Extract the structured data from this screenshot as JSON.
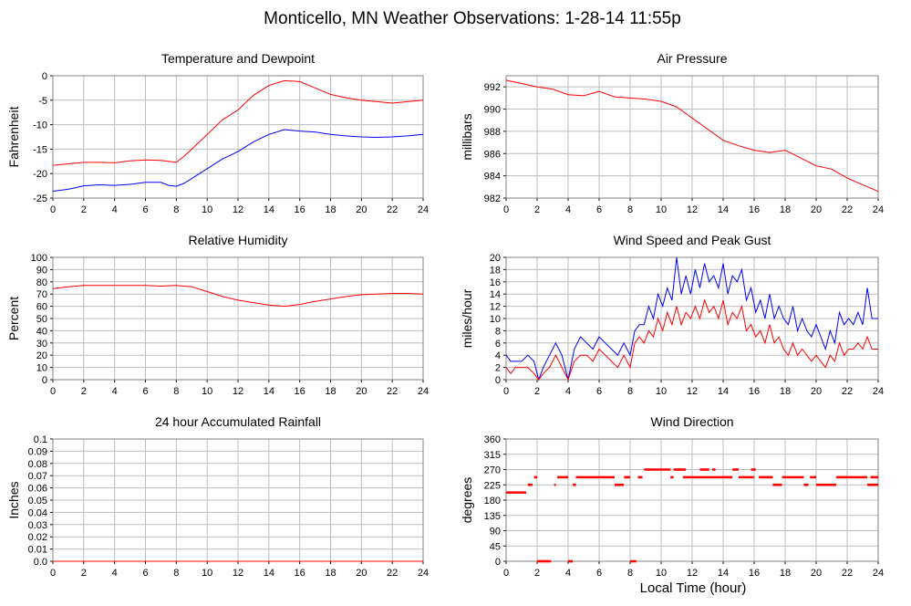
{
  "page_title": "Monticello, MN Weather Observations: 1-28-14 11:55p",
  "footer_xlabel": "Local Time (hour)",
  "chart_data": [
    {
      "id": "temp",
      "type": "line",
      "title": "Temperature and Dewpoint",
      "xlabel": "",
      "ylabel": "Fahrenheit",
      "xlim": [
        0,
        24
      ],
      "ylim": [
        -25,
        0
      ],
      "xticks": [
        0,
        2,
        4,
        6,
        8,
        10,
        12,
        14,
        16,
        18,
        20,
        22,
        24
      ],
      "yticks": [
        -25,
        -20,
        -15,
        -10,
        -5,
        0
      ],
      "ytick_labels": [
        "-25",
        "-20",
        "-15",
        "-10",
        "-5",
        "0"
      ],
      "grid": true,
      "series": [
        {
          "color": "#ff0000",
          "x": [
            0,
            1,
            2,
            3,
            4,
            5,
            6,
            7,
            8,
            8.5,
            9,
            10,
            11,
            12,
            13,
            14,
            15,
            16,
            17,
            18,
            19,
            20,
            21,
            22,
            23,
            24
          ],
          "y": [
            -18.3,
            -18,
            -17.7,
            -17.7,
            -17.8,
            -17.4,
            -17.2,
            -17.3,
            -17.7,
            -16.5,
            -15,
            -12,
            -9,
            -7,
            -4,
            -2,
            -1,
            -1.2,
            -2.5,
            -3.8,
            -4.5,
            -5,
            -5.3,
            -5.6,
            -5.3,
            -5
          ]
        },
        {
          "color": "#0000ff",
          "x": [
            0,
            1,
            2,
            3,
            4,
            5,
            6,
            7,
            7.5,
            8,
            8.5,
            9,
            10,
            11,
            12,
            13,
            14,
            15,
            16,
            17,
            18,
            19,
            20,
            21,
            22,
            23,
            24
          ],
          "y": [
            -23.6,
            -23.2,
            -22.5,
            -22.3,
            -22.4,
            -22.2,
            -21.8,
            -21.8,
            -22.4,
            -22.6,
            -22,
            -21,
            -19,
            -17,
            -15.5,
            -13.5,
            -12,
            -11,
            -11.3,
            -11.5,
            -12,
            -12.3,
            -12.5,
            -12.6,
            -12.5,
            -12.3,
            -12
          ]
        }
      ]
    },
    {
      "id": "pressure",
      "type": "line",
      "title": "Air Pressure",
      "xlabel": "",
      "ylabel": "millibars",
      "xlim": [
        0,
        24
      ],
      "ylim": [
        982,
        993
      ],
      "xticks": [
        0,
        2,
        4,
        6,
        8,
        10,
        12,
        14,
        16,
        18,
        20,
        22,
        24
      ],
      "yticks": [
        982,
        984,
        986,
        988,
        990,
        992
      ],
      "ytick_labels": [
        "982",
        "984",
        "986",
        "988",
        "990",
        "992"
      ],
      "grid": true,
      "series": [
        {
          "color": "#ff0000",
          "x": [
            0,
            1,
            2,
            3,
            4,
            5,
            6,
            7,
            8,
            9,
            10,
            11,
            12,
            13,
            14,
            15,
            16,
            17,
            18,
            19,
            20,
            21,
            22,
            23,
            24
          ],
          "y": [
            992.6,
            992.3,
            992,
            991.8,
            991.3,
            991.2,
            991.6,
            991.1,
            991,
            990.9,
            990.7,
            990.2,
            989.2,
            988.2,
            987.2,
            986.7,
            986.3,
            986.1,
            986.3,
            985.6,
            984.9,
            984.6,
            983.8,
            983.2,
            982.6
          ]
        }
      ]
    },
    {
      "id": "humidity",
      "type": "line",
      "title": "Relative Humidity",
      "xlabel": "",
      "ylabel": "Percent",
      "xlim": [
        0,
        24
      ],
      "ylim": [
        0,
        100
      ],
      "xticks": [
        0,
        2,
        4,
        6,
        8,
        10,
        12,
        14,
        16,
        18,
        20,
        22,
        24
      ],
      "yticks": [
        0,
        10,
        20,
        30,
        40,
        50,
        60,
        70,
        80,
        90,
        100
      ],
      "ytick_labels": [
        "0",
        "10",
        "20",
        "30",
        "40",
        "50",
        "60",
        "70",
        "80",
        "90",
        "100"
      ],
      "grid": true,
      "series": [
        {
          "color": "#ff0000",
          "x": [
            0,
            1,
            2,
            3,
            4,
            5,
            6,
            7,
            8,
            9,
            10,
            11,
            12,
            13,
            14,
            15,
            16,
            17,
            18,
            19,
            20,
            21,
            22,
            23,
            24
          ],
          "y": [
            74.5,
            76,
            77,
            77,
            77,
            77,
            77,
            76.5,
            77,
            76,
            72,
            68,
            65,
            63,
            61,
            60,
            61.5,
            64,
            66,
            68,
            69.5,
            70,
            70.5,
            70.5,
            70
          ]
        }
      ]
    },
    {
      "id": "wind",
      "type": "line",
      "title": "Wind Speed and Peak Gust",
      "xlabel": "",
      "ylabel": "miles/hour",
      "xlim": [
        0,
        24
      ],
      "ylim": [
        0,
        20
      ],
      "xticks": [
        0,
        2,
        4,
        6,
        8,
        10,
        12,
        14,
        16,
        18,
        20,
        22,
        24
      ],
      "yticks": [
        0,
        2,
        4,
        6,
        8,
        10,
        12,
        14,
        16,
        18,
        20
      ],
      "ytick_labels": [
        "0",
        "2",
        "4",
        "6",
        "8",
        "10",
        "12",
        "14",
        "16",
        "18",
        "20"
      ],
      "grid": true,
      "series": [
        {
          "color": "#0000ff",
          "x": [
            0,
            0.3,
            0.6,
            1,
            1.4,
            1.8,
            2.1,
            2.4,
            2.8,
            3.2,
            3.6,
            4,
            4.4,
            4.8,
            5.2,
            5.6,
            6,
            6.4,
            6.8,
            7.2,
            7.6,
            8,
            8.3,
            8.6,
            8.9,
            9.2,
            9.5,
            9.8,
            10.1,
            10.4,
            10.7,
            11,
            11.3,
            11.6,
            11.9,
            12.2,
            12.5,
            12.8,
            13.1,
            13.4,
            13.7,
            14,
            14.3,
            14.6,
            14.9,
            15.2,
            15.5,
            15.8,
            16.1,
            16.4,
            16.7,
            17,
            17.3,
            17.6,
            17.9,
            18.2,
            18.5,
            18.8,
            19.1,
            19.4,
            19.7,
            20,
            20.3,
            20.6,
            20.9,
            21.2,
            21.5,
            21.8,
            22.1,
            22.4,
            22.7,
            23,
            23.3,
            23.6,
            24
          ],
          "y": [
            4,
            3,
            3,
            3,
            4,
            3,
            0,
            2,
            4,
            6,
            4,
            0,
            5,
            7,
            6,
            5,
            7,
            6,
            5,
            4,
            6,
            4,
            8,
            9,
            9,
            12,
            10,
            14,
            12,
            15,
            13,
            20,
            14,
            17,
            14,
            18,
            15,
            19,
            16,
            17,
            15,
            19,
            14,
            17,
            16,
            18,
            13,
            15,
            11,
            13,
            10,
            14,
            10,
            12,
            10,
            9,
            12,
            8,
            10,
            8,
            7,
            9,
            7,
            5,
            8,
            6,
            11,
            9,
            10,
            9,
            11,
            9,
            15,
            10,
            10
          ]
        },
        {
          "color": "#ff0000",
          "x": [
            0,
            0.3,
            0.6,
            1,
            1.4,
            1.8,
            2.1,
            2.4,
            2.8,
            3.2,
            3.6,
            4,
            4.4,
            4.8,
            5.2,
            5.6,
            6,
            6.4,
            6.8,
            7.2,
            7.6,
            8,
            8.3,
            8.6,
            8.9,
            9.2,
            9.5,
            9.8,
            10.1,
            10.4,
            10.7,
            11,
            11.3,
            11.6,
            11.9,
            12.2,
            12.5,
            12.8,
            13.1,
            13.4,
            13.7,
            14,
            14.3,
            14.6,
            14.9,
            15.2,
            15.5,
            15.8,
            16.1,
            16.4,
            16.7,
            17,
            17.3,
            17.6,
            17.9,
            18.2,
            18.5,
            18.8,
            19.1,
            19.4,
            19.7,
            20,
            20.3,
            20.6,
            20.9,
            21.2,
            21.5,
            21.8,
            22.1,
            22.4,
            22.7,
            23,
            23.3,
            23.6,
            24
          ],
          "y": [
            2,
            1,
            2,
            2,
            2,
            1,
            0,
            1,
            2,
            4,
            2,
            0,
            3,
            4,
            4,
            3,
            5,
            4,
            3,
            2,
            4,
            2,
            6,
            7,
            6,
            8,
            7,
            10,
            8,
            11,
            9,
            12,
            9,
            11,
            10,
            12,
            10,
            13,
            11,
            12,
            10,
            13,
            9,
            11,
            10,
            12,
            8,
            9,
            7,
            8,
            6,
            9,
            6,
            7,
            5,
            4,
            6,
            4,
            5,
            4,
            3,
            4,
            3,
            2,
            4,
            3,
            6,
            4,
            5,
            5,
            6,
            5,
            7,
            5,
            5
          ]
        }
      ]
    },
    {
      "id": "rain",
      "type": "line",
      "title": "24 hour Accumulated Rainfall",
      "xlabel": "",
      "ylabel": "Inches",
      "xlim": [
        0,
        24
      ],
      "ylim": [
        0,
        0.1
      ],
      "xticks": [
        0,
        2,
        4,
        6,
        8,
        10,
        12,
        14,
        16,
        18,
        20,
        22,
        24
      ],
      "yticks": [
        0,
        0.01,
        0.02,
        0.03,
        0.04,
        0.05,
        0.06,
        0.07,
        0.08,
        0.09,
        0.1
      ],
      "ytick_labels": [
        "0.0",
        "0.01",
        "0.02",
        "0.03",
        "0.04",
        "0.05",
        "0.06",
        "0.07",
        "0.08",
        "0.09",
        "0.1"
      ],
      "grid": true,
      "series": [
        {
          "color": "#ff0000",
          "x": [
            0,
            24
          ],
          "y": [
            0,
            0
          ]
        }
      ]
    },
    {
      "id": "direction",
      "type": "scatter",
      "title": "Wind Direction",
      "xlabel": "Local Time (hour)",
      "ylabel": "degrees",
      "xlim": [
        0,
        24
      ],
      "ylim": [
        0,
        360
      ],
      "xticks": [
        0,
        2,
        4,
        6,
        8,
        10,
        12,
        14,
        16,
        18,
        20,
        22,
        24
      ],
      "yticks": [
        0,
        45,
        90,
        135,
        180,
        225,
        270,
        315,
        360
      ],
      "ytick_labels": [
        "0",
        "45",
        "90",
        "135",
        "180",
        "225",
        "270",
        "315",
        "360"
      ],
      "grid": true,
      "series": [
        {
          "color": "#ff0000",
          "segments": [
            [
              0,
              1.3,
              202.5
            ],
            [
              1.4,
              1.7,
              225
            ],
            [
              1.8,
              2.0,
              247.5
            ],
            [
              2.0,
              2.9,
              0
            ],
            [
              3.1,
              3.2,
              225
            ],
            [
              3.3,
              4.0,
              247.5
            ],
            [
              4.0,
              4.3,
              0
            ],
            [
              4.3,
              4.5,
              225
            ],
            [
              4.5,
              7.0,
              247.5
            ],
            [
              7.0,
              7.6,
              225
            ],
            [
              7.6,
              8.0,
              247.5
            ],
            [
              8.0,
              8.4,
              0
            ],
            [
              8.5,
              8.8,
              247.5
            ],
            [
              8.9,
              10.6,
              270
            ],
            [
              10.6,
              10.8,
              247.5
            ],
            [
              10.8,
              11.6,
              270
            ],
            [
              11.4,
              14.0,
              247.5
            ],
            [
              12.5,
              13.1,
              270
            ],
            [
              13.3,
              13.5,
              270
            ],
            [
              14.0,
              14.6,
              247.5
            ],
            [
              14.6,
              15.0,
              270
            ],
            [
              15.0,
              16.0,
              247.5
            ],
            [
              15.8,
              16.1,
              270
            ],
            [
              16.3,
              17.2,
              247.5
            ],
            [
              17.2,
              17.8,
              225
            ],
            [
              17.8,
              19.2,
              247.5
            ],
            [
              19.2,
              19.5,
              225
            ],
            [
              19.6,
              20.0,
              247.5
            ],
            [
              20.0,
              21.3,
              225
            ],
            [
              21.3,
              22.0,
              247.5
            ],
            [
              22.0,
              23.3,
              247.5
            ],
            [
              23.3,
              24.0,
              225
            ],
            [
              23.5,
              24.0,
              247.5
            ]
          ]
        }
      ]
    }
  ]
}
